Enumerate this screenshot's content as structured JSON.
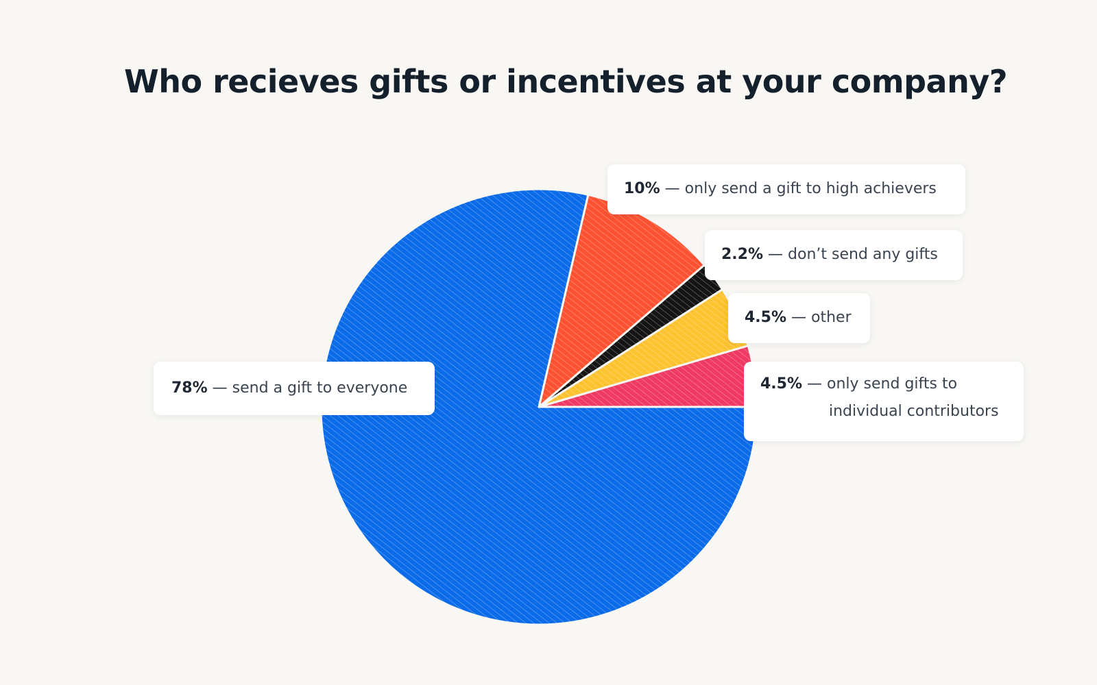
{
  "chart_data": {
    "type": "pie",
    "title": "Who recieves gifts or incentives at your company?",
    "slices": [
      {
        "value": 4.5,
        "value_label": "4.5%",
        "label": "only send gifts to individual contributors",
        "line1": "only send gifts to",
        "line2": "individual contributors",
        "color": "#ef3a64"
      },
      {
        "value": 4.5,
        "value_label": "4.5%",
        "label": "other",
        "color": "#fdc22f"
      },
      {
        "value": 2.2,
        "value_label": "2.2%",
        "label": "don’t send any gifts",
        "color": "#151515"
      },
      {
        "value": 10,
        "value_label": "10%",
        "label": "only send a gift to high achievers",
        "color": "#fd5231"
      },
      {
        "value": 78,
        "value_label": "78%",
        "label": "send a gift to everyone",
        "color": "#0b6be8"
      }
    ],
    "separator": "—",
    "start": "3 o'clock, counterclockwise"
  }
}
